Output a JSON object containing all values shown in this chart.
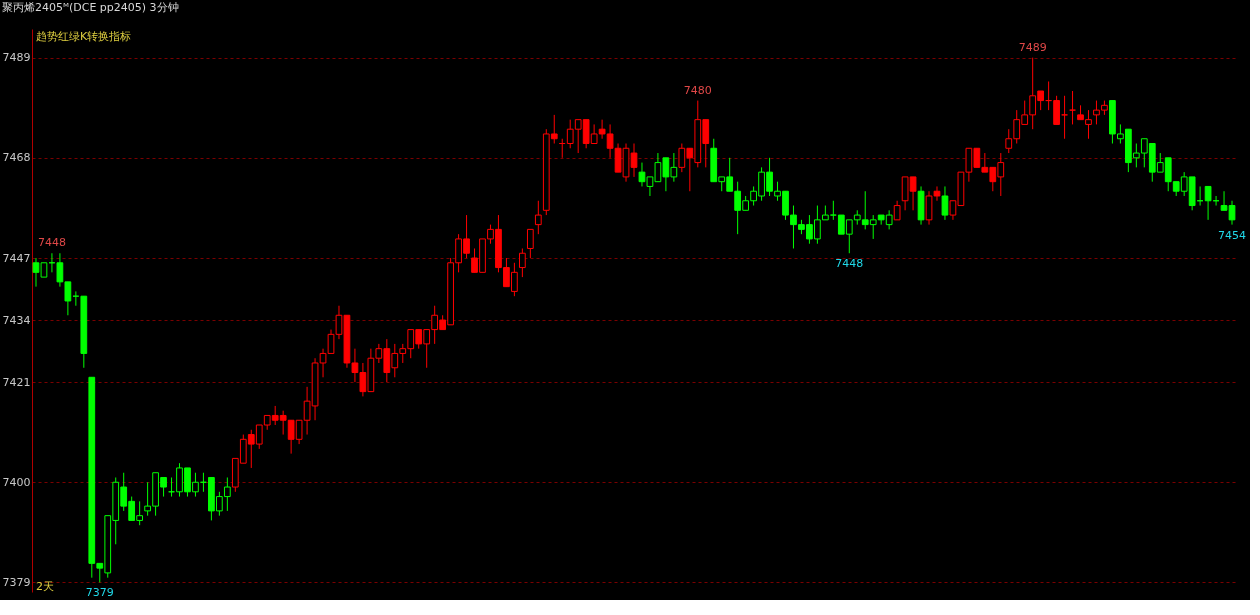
{
  "chart_data": {
    "type": "candlestick",
    "title": "聚丙烯2405ᴹ(DCE pp2405)",
    "subtitle": "3分钟",
    "annotations": [
      "趋势红绿K转换指标",
      "2天",
      {
        "text": "7448",
        "y": 7448
      },
      {
        "text": "7379",
        "y": 7379
      },
      {
        "text": "7480",
        "y": 7480
      },
      {
        "text": "7448",
        "y": 7448
      },
      {
        "text": "7489",
        "y": 7489
      },
      {
        "text": "7454",
        "y": 7454
      }
    ],
    "categories": [
      null,
      null,
      null,
      null,
      null,
      null,
      null,
      null,
      null,
      null,
      null,
      null,
      null,
      null,
      null,
      null,
      null,
      null,
      null,
      null,
      null,
      null,
      null,
      null,
      null,
      null,
      null,
      null,
      null,
      null,
      null,
      null,
      null,
      null,
      null,
      null,
      null,
      null,
      null,
      null,
      null,
      null,
      null,
      null,
      null,
      null,
      null,
      null,
      null,
      null,
      null,
      null,
      null,
      null,
      null,
      null,
      null,
      null,
      null,
      null,
      null,
      null,
      null,
      null,
      null,
      null,
      null,
      null,
      null,
      null,
      null,
      null,
      null,
      null,
      null,
      null,
      null,
      null,
      null,
      null,
      null,
      null,
      null,
      null,
      null,
      null,
      null,
      null,
      null,
      null,
      null,
      null,
      null,
      null,
      null,
      null,
      null,
      null,
      null,
      null,
      null,
      null,
      null,
      null,
      null,
      null,
      null,
      null,
      null,
      null,
      null,
      null,
      null,
      null,
      null,
      null,
      null,
      null,
      null,
      null,
      null,
      null,
      null,
      null,
      null,
      null,
      null,
      null,
      null,
      null,
      null,
      null,
      null,
      null,
      null,
      null,
      null,
      null,
      null,
      null,
      null,
      null,
      null,
      null,
      null,
      null,
      null,
      null,
      null,
      null,
      null
    ],
    "ohlc": [
      [
        7446,
        7447,
        7441,
        7444
      ],
      [
        7443,
        7446,
        7443,
        7446
      ],
      [
        7446,
        7448,
        7444,
        7446
      ],
      [
        7446,
        7448,
        7441,
        7442
      ],
      [
        7442,
        7442,
        7435,
        7438
      ],
      [
        7439,
        7440,
        7437,
        7439
      ],
      [
        7439,
        7439,
        7424,
        7427
      ],
      [
        7422,
        7422,
        7380,
        7383
      ],
      [
        7383,
        7383,
        7379,
        7382
      ],
      [
        7381,
        7393,
        7380,
        7393
      ],
      [
        7392,
        7401,
        7387,
        7400
      ],
      [
        7399,
        7402,
        7394,
        7395
      ],
      [
        7396,
        7397,
        7392,
        7392
      ],
      [
        7392,
        7396,
        7391,
        7393
      ],
      [
        7394,
        7400,
        7393,
        7395
      ],
      [
        7395,
        7402,
        7393,
        7402
      ],
      [
        7401,
        7401,
        7397,
        7399
      ],
      [
        7398,
        7401,
        7397,
        7398
      ],
      [
        7398,
        7404,
        7397,
        7403
      ],
      [
        7403,
        7403,
        7397,
        7398
      ],
      [
        7398,
        7402,
        7397,
        7400
      ],
      [
        7400,
        7402,
        7398,
        7400
      ],
      [
        7401,
        7401,
        7392,
        7394
      ],
      [
        7394,
        7398,
        7393,
        7397
      ],
      [
        7397,
        7401,
        7394,
        7399
      ],
      [
        7399,
        7405,
        7398,
        7405
      ],
      [
        7404,
        7410,
        7404,
        7409
      ],
      [
        7410,
        7411,
        7403,
        7408
      ],
      [
        7408,
        7412,
        7407,
        7412
      ],
      [
        7412,
        7414,
        7411,
        7414
      ],
      [
        7414,
        7416,
        7412,
        7413
      ],
      [
        7414,
        7415,
        7410,
        7413
      ],
      [
        7413,
        7413,
        7406,
        7409
      ],
      [
        7409,
        7413,
        7408,
        7413
      ],
      [
        7413,
        7420,
        7410,
        7417
      ],
      [
        7416,
        7426,
        7413,
        7425
      ],
      [
        7425,
        7428,
        7422,
        7427
      ],
      [
        7427,
        7432,
        7427,
        7431
      ],
      [
        7431,
        7437,
        7430,
        7435
      ],
      [
        7435,
        7435,
        7424,
        7425
      ],
      [
        7425,
        7428,
        7421,
        7423
      ],
      [
        7423,
        7425,
        7418,
        7419
      ],
      [
        7419,
        7428,
        7419,
        7426
      ],
      [
        7426,
        7429,
        7425,
        7428
      ],
      [
        7428,
        7430,
        7421,
        7423
      ],
      [
        7424,
        7429,
        7422,
        7427
      ],
      [
        7427,
        7429,
        7425,
        7428
      ],
      [
        7428,
        7432,
        7426,
        7432
      ],
      [
        7432,
        7432,
        7428,
        7429
      ],
      [
        7429,
        7432,
        7424,
        7432
      ],
      [
        7432,
        7437,
        7429,
        7435
      ],
      [
        7434,
        7435,
        7432,
        7432
      ],
      [
        7433,
        7447,
        7433,
        7446
      ],
      [
        7446,
        7452,
        7444,
        7451
      ],
      [
        7451,
        7456,
        7447,
        7448
      ],
      [
        7447,
        7449,
        7444,
        7444
      ],
      [
        7444,
        7451,
        7444,
        7451
      ],
      [
        7451,
        7454,
        7450,
        7453
      ],
      [
        7453,
        7456,
        7444,
        7445
      ],
      [
        7445,
        7447,
        7441,
        7441
      ],
      [
        7440,
        7446,
        7439,
        7444
      ],
      [
        7445,
        7449,
        7443,
        7448
      ],
      [
        7449,
        7453,
        7447,
        7453
      ],
      [
        7454,
        7459,
        7452,
        7456
      ],
      [
        7457,
        7474,
        7456,
        7473
      ],
      [
        7473,
        7477,
        7471,
        7472
      ],
      [
        7471,
        7472,
        7468,
        7471
      ],
      [
        7471,
        7476,
        7470,
        7474
      ],
      [
        7474,
        7476,
        7469,
        7476
      ],
      [
        7476,
        7476,
        7470,
        7471
      ],
      [
        7471,
        7475,
        7471,
        7473
      ],
      [
        7474,
        7476,
        7472,
        7473
      ],
      [
        7473,
        7475,
        7468,
        7470
      ],
      [
        7470,
        7471,
        7465,
        7465
      ],
      [
        7464,
        7471,
        7463,
        7470
      ],
      [
        7469,
        7471,
        7464,
        7466
      ],
      [
        7465,
        7467,
        7462,
        7463
      ],
      [
        7462,
        7464,
        7460,
        7464
      ],
      [
        7463,
        7469,
        7463,
        7467
      ],
      [
        7468,
        7468,
        7461,
        7464
      ],
      [
        7464,
        7469,
        7463,
        7466
      ],
      [
        7466,
        7471,
        7465,
        7470
      ],
      [
        7470,
        7470,
        7461,
        7468
      ],
      [
        7467,
        7480,
        7466,
        7476
      ],
      [
        7476,
        7476,
        7466,
        7471
      ],
      [
        7470,
        7472,
        7463,
        7463
      ],
      [
        7463,
        7464,
        7461,
        7464
      ],
      [
        7464,
        7468,
        7461,
        7461
      ],
      [
        7461,
        7463,
        7452,
        7457
      ],
      [
        7457,
        7460,
        7457,
        7459
      ],
      [
        7459,
        7462,
        7458,
        7461
      ],
      [
        7460,
        7466,
        7459,
        7465
      ],
      [
        7465,
        7468,
        7460,
        7461
      ],
      [
        7460,
        7463,
        7459,
        7461
      ],
      [
        7461,
        7461,
        7455,
        7456
      ],
      [
        7456,
        7458,
        7449,
        7454
      ],
      [
        7454,
        7455,
        7452,
        7453
      ],
      [
        7454,
        7456,
        7450,
        7451
      ],
      [
        7451,
        7458,
        7450,
        7455
      ],
      [
        7455,
        7458,
        7455,
        7456
      ],
      [
        7456,
        7459,
        7455,
        7456
      ],
      [
        7456,
        7456,
        7452,
        7452
      ],
      [
        7452,
        7455,
        7448,
        7455
      ],
      [
        7455,
        7457,
        7454,
        7456
      ],
      [
        7455,
        7461,
        7453,
        7454
      ],
      [
        7454,
        7456,
        7451,
        7455
      ],
      [
        7456,
        7456,
        7454,
        7455
      ],
      [
        7454,
        7457,
        7453,
        7456
      ],
      [
        7455,
        7459,
        7455,
        7458
      ],
      [
        7459,
        7464,
        7457,
        7464
      ],
      [
        7464,
        7464,
        7457,
        7461
      ],
      [
        7461,
        7462,
        7454,
        7455
      ],
      [
        7455,
        7461,
        7454,
        7460
      ],
      [
        7461,
        7462,
        7459,
        7460
      ],
      [
        7460,
        7462,
        7455,
        7456
      ],
      [
        7456,
        7459,
        7455,
        7459
      ],
      [
        7458,
        7465,
        7458,
        7465
      ],
      [
        7465,
        7470,
        7463,
        7470
      ],
      [
        7470,
        7470,
        7466,
        7466
      ],
      [
        7466,
        7469,
        7465,
        7465
      ],
      [
        7466,
        7466,
        7461,
        7463
      ],
      [
        7464,
        7469,
        7460,
        7467
      ],
      [
        7470,
        7474,
        7469,
        7472
      ],
      [
        7472,
        7478,
        7471,
        7476
      ],
      [
        7475,
        7480,
        7475,
        7477
      ],
      [
        7477,
        7489,
        7474,
        7481
      ],
      [
        7482,
        7482,
        7478,
        7480
      ],
      [
        7480,
        7484,
        7478,
        7480
      ],
      [
        7480,
        7481,
        7475,
        7475
      ],
      [
        7477,
        7481,
        7472,
        7477
      ],
      [
        7478,
        7482,
        7475,
        7478
      ],
      [
        7477,
        7479,
        7476,
        7476
      ],
      [
        7475,
        7478,
        7472,
        7476
      ],
      [
        7477,
        7480,
        7475,
        7478
      ],
      [
        7478,
        7480,
        7477,
        7479
      ],
      [
        7480,
        7480,
        7471,
        7473
      ],
      [
        7472,
        7475,
        7471,
        7473
      ],
      [
        7474,
        7474,
        7465,
        7467
      ],
      [
        7468,
        7471,
        7466,
        7469
      ],
      [
        7469,
        7472,
        7466,
        7472
      ],
      [
        7471,
        7471,
        7463,
        7465
      ],
      [
        7465,
        7469,
        7465,
        7467
      ],
      [
        7468,
        7468,
        7461,
        7463
      ],
      [
        7463,
        7463,
        7460,
        7461
      ],
      [
        7461,
        7465,
        7460,
        7464
      ],
      [
        7464,
        7464,
        7457,
        7458
      ],
      [
        7459,
        7462,
        7458,
        7459
      ],
      [
        7462,
        7462,
        7455,
        7459
      ],
      [
        7459,
        7460,
        7458,
        7459
      ],
      [
        7458,
        7461,
        7457,
        7457
      ],
      [
        7458,
        7459,
        7454,
        7455
      ]
    ],
    "colors": [
      "#00ff00",
      "#00ff00",
      "#00ff00",
      "#00ff00",
      "#00ff00",
      "#00ff00",
      "#00ff00",
      "#00ff00",
      "#00ff00",
      "#00ff00",
      "#00ff00",
      "#00ff00",
      "#00ff00",
      "#00ff00",
      "#00ff00",
      "#00ff00",
      "#00ff00",
      "#00ff00",
      "#00ff00",
      "#00ff00",
      "#00ff00",
      "#00ff00",
      "#00ff00",
      "#00ff00",
      "#00ff00",
      "#ff0000",
      "#ff0000",
      "#ff0000",
      "#ff0000",
      "#ff0000",
      "#ff0000",
      "#ff0000",
      "#ff0000",
      "#ff0000",
      "#ff0000",
      "#ff0000",
      "#ff0000",
      "#ff0000",
      "#ff0000",
      "#ff0000",
      "#ff0000",
      "#ff0000",
      "#ff0000",
      "#ff0000",
      "#ff0000",
      "#ff0000",
      "#ff0000",
      "#ff0000",
      "#ff0000",
      "#ff0000",
      "#ff0000",
      "#ff0000",
      "#ff0000",
      "#ff0000",
      "#ff0000",
      "#ff0000",
      "#ff0000",
      "#ff0000",
      "#ff0000",
      "#ff0000",
      "#ff0000",
      "#ff0000",
      "#ff0000",
      "#ff0000",
      "#ff0000",
      "#ff0000",
      "#ff0000",
      "#ff0000",
      "#ff0000",
      "#ff0000",
      "#ff0000",
      "#ff0000",
      "#ff0000",
      "#ff0000",
      "#ff0000",
      "#ff0000",
      "#00ff00",
      "#00ff00",
      "#00ff00",
      "#00ff00",
      "#00ff00",
      "#ff0000",
      "#ff0000",
      "#ff0000",
      "#ff0000",
      "#00ff00",
      "#00ff00",
      "#00ff00",
      "#00ff00",
      "#00ff00",
      "#00ff00",
      "#00ff00",
      "#00ff00",
      "#00ff00",
      "#00ff00",
      "#00ff00",
      "#00ff00",
      "#00ff00",
      "#00ff00",
      "#00ff00",
      "#00ff00",
      "#00ff00",
      "#00ff00",
      "#00ff00",
      "#00ff00",
      "#00ff00",
      "#00ff00",
      "#00ff00",
      "#ff0000",
      "#ff0000",
      "#ff0000",
      "#00ff00",
      "#ff0000",
      "#ff0000",
      "#00ff00",
      "#ff0000",
      "#ff0000",
      "#ff0000",
      "#ff0000",
      "#ff0000",
      "#ff0000",
      "#ff0000",
      "#ff0000",
      "#ff0000",
      "#ff0000",
      "#ff0000",
      "#ff0000",
      "#ff0000",
      "#ff0000",
      "#ff0000",
      "#ff0000",
      "#ff0000",
      "#ff0000",
      "#ff0000",
      "#ff0000",
      "#00ff00",
      "#00ff00",
      "#00ff00",
      "#00ff00",
      "#00ff00",
      "#00ff00",
      "#00ff00",
      "#00ff00",
      "#00ff00",
      "#00ff00",
      "#00ff00",
      "#00ff00",
      "#00ff00",
      "#00ff00",
      "#00ff00",
      "#00ff00"
    ],
    "ylim": [
      7377,
      7495
    ],
    "yticks": [
      7379,
      7400,
      7421,
      7434,
      7447,
      7468,
      7489
    ],
    "grid": "y",
    "tick_labels": "y"
  }
}
